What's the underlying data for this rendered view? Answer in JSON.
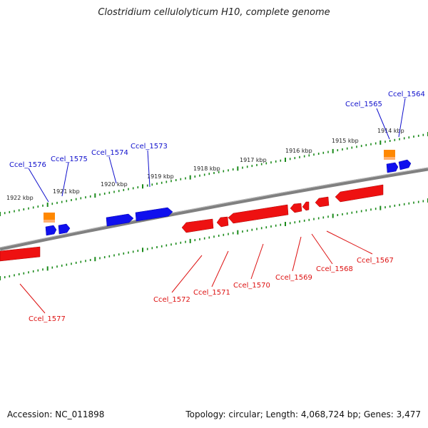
{
  "title": "Clostridium cellulolyticum H10, complete genome",
  "footer": {
    "accession": "Accession: NC_011898",
    "summary": "Topology: circular; Length: 4,068,724 bp; Genes: 3,477"
  },
  "colors": {
    "forward": "#1010ee",
    "reverse": "#ee1111",
    "rna": "#ff8800",
    "backbone": "#808080",
    "tick": "#1a8a1a",
    "ruler_text": "#222222"
  },
  "ruler_labels": [
    "1914 kbp",
    "1915 kbp",
    "1916 kbp",
    "1917 kbp",
    "1918 kbp",
    "1919 kbp",
    "1920 kbp",
    "1921 kbp",
    "1922 kbp"
  ],
  "genes_forward": [
    "Ccel_1564",
    "Ccel_1565",
    "Ccel_1573",
    "Ccel_1574",
    "Ccel_1575",
    "Ccel_1576"
  ],
  "genes_reverse": [
    "Ccel_1567",
    "Ccel_1568",
    "Ccel_1569",
    "Ccel_1570",
    "Ccel_1571",
    "Ccel_1572",
    "Ccel_1577"
  ]
}
